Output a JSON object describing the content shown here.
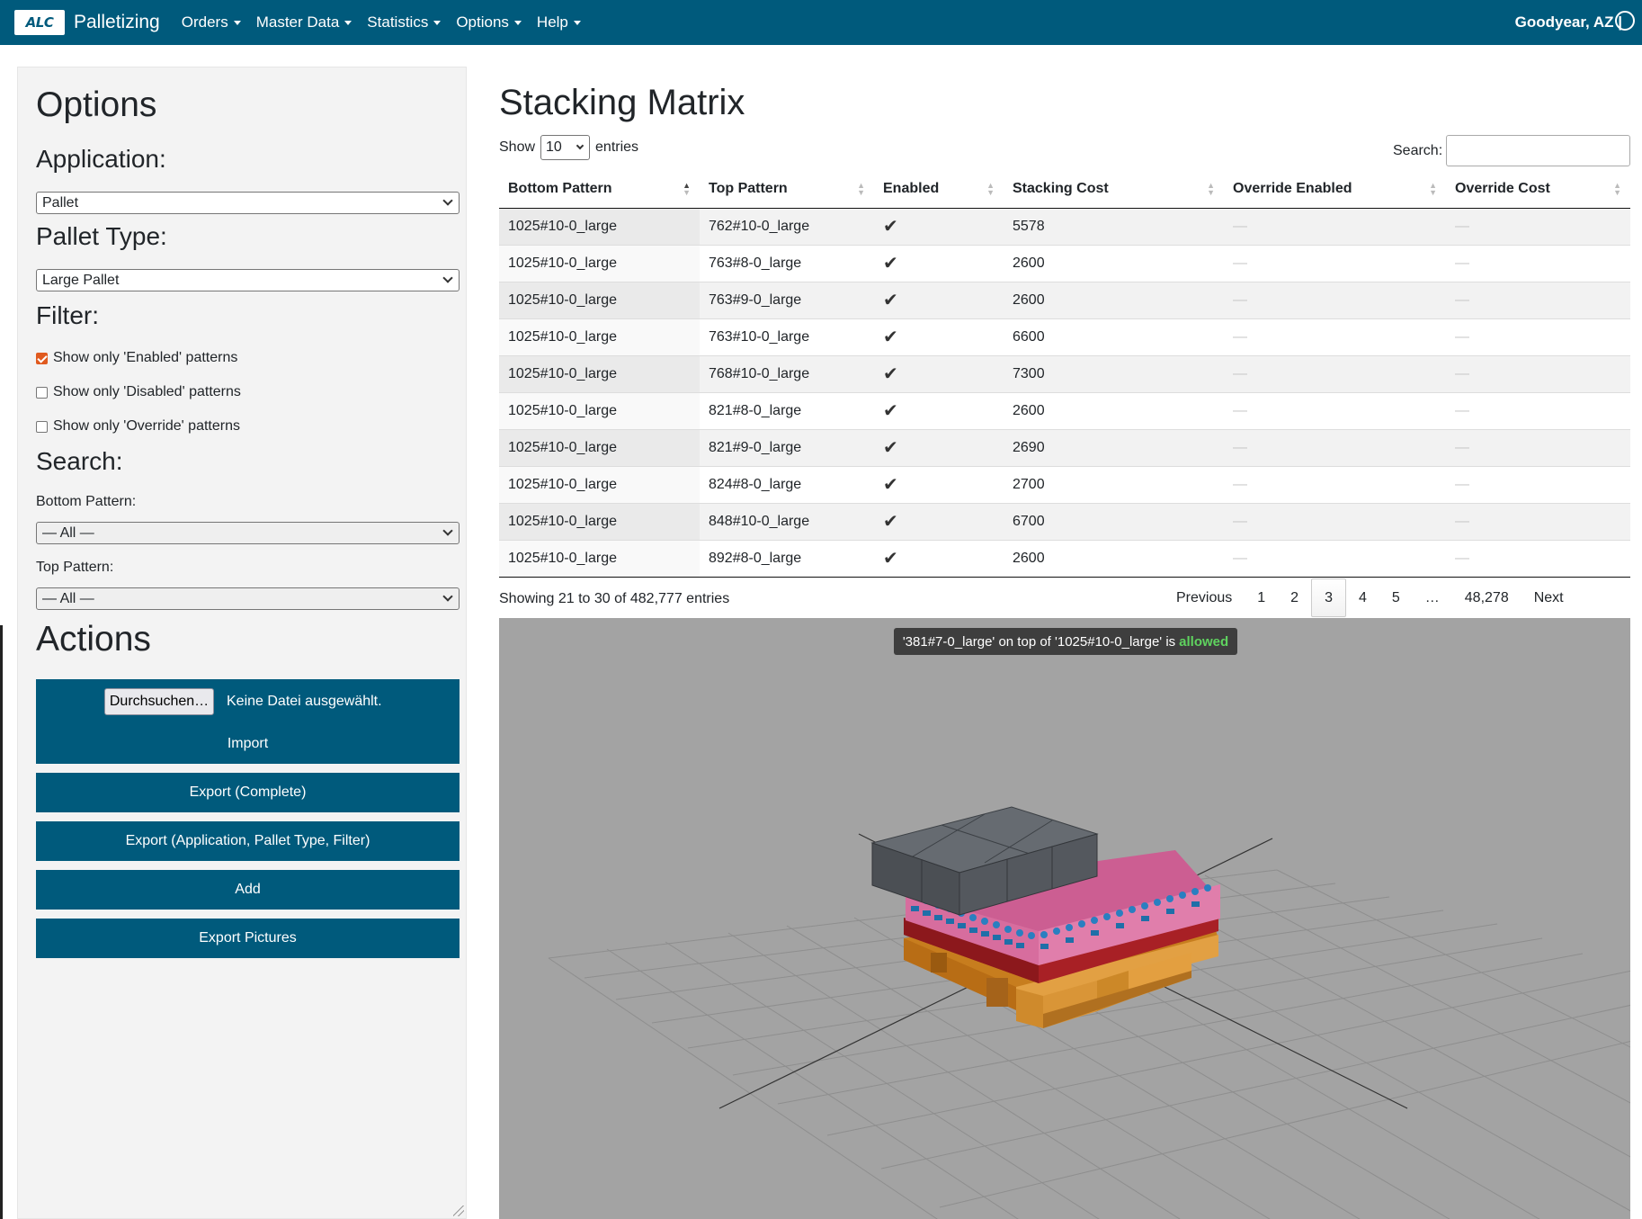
{
  "navbar": {
    "logo_text": "ALC",
    "app_name": "Palletizing",
    "menu": [
      {
        "label": "Orders"
      },
      {
        "label": "Master Data"
      },
      {
        "label": "Statistics"
      },
      {
        "label": "Options"
      },
      {
        "label": "Help"
      }
    ],
    "location": "Goodyear, AZ |"
  },
  "options": {
    "title": "Options",
    "application_label": "Application:",
    "application_value": "Pallet",
    "pallet_type_label": "Pallet Type:",
    "pallet_type_value": "Large Pallet",
    "filter_label": "Filter:",
    "filters": [
      {
        "label": "Show only 'Enabled' patterns",
        "checked": true
      },
      {
        "label": "Show only 'Disabled' patterns",
        "checked": false
      },
      {
        "label": "Show only 'Override' patterns",
        "checked": false
      }
    ],
    "search_label": "Search:",
    "bottom_pattern_label": "Bottom Pattern:",
    "bottom_pattern_value": "— All —",
    "top_pattern_label": "Top Pattern:",
    "top_pattern_value": "— All —"
  },
  "actions": {
    "title": "Actions",
    "browse_button": "Durchsuchen…",
    "no_file_text": "Keine Datei ausgewählt.",
    "import_label": "Import",
    "export_complete": "Export (Complete)",
    "export_filtered": "Export (Application, Pallet Type, Filter)",
    "add": "Add",
    "export_pictures": "Export Pictures"
  },
  "matrix": {
    "title": "Stacking Matrix",
    "show_label": "Show",
    "entries_label": "entries",
    "page_length": "10",
    "search_label": "Search:",
    "columns": [
      "Bottom Pattern",
      "Top Pattern",
      "Enabled",
      "Stacking Cost",
      "Override Enabled",
      "Override Cost"
    ],
    "rows": [
      {
        "bottom": "1025#10-0_large",
        "top": "762#10-0_large",
        "enabled": "✔",
        "cost": "5578",
        "override_enabled": "—",
        "override_cost": "—"
      },
      {
        "bottom": "1025#10-0_large",
        "top": "763#8-0_large",
        "enabled": "✔",
        "cost": "2600",
        "override_enabled": "—",
        "override_cost": "—"
      },
      {
        "bottom": "1025#10-0_large",
        "top": "763#9-0_large",
        "enabled": "✔",
        "cost": "2600",
        "override_enabled": "—",
        "override_cost": "—"
      },
      {
        "bottom": "1025#10-0_large",
        "top": "763#10-0_large",
        "enabled": "✔",
        "cost": "6600",
        "override_enabled": "—",
        "override_cost": "—"
      },
      {
        "bottom": "1025#10-0_large",
        "top": "768#10-0_large",
        "enabled": "✔",
        "cost": "7300",
        "override_enabled": "—",
        "override_cost": "—"
      },
      {
        "bottom": "1025#10-0_large",
        "top": "821#8-0_large",
        "enabled": "✔",
        "cost": "2600",
        "override_enabled": "—",
        "override_cost": "—"
      },
      {
        "bottom": "1025#10-0_large",
        "top": "821#9-0_large",
        "enabled": "✔",
        "cost": "2690",
        "override_enabled": "—",
        "override_cost": "—"
      },
      {
        "bottom": "1025#10-0_large",
        "top": "824#8-0_large",
        "enabled": "✔",
        "cost": "2700",
        "override_enabled": "—",
        "override_cost": "—"
      },
      {
        "bottom": "1025#10-0_large",
        "top": "848#10-0_large",
        "enabled": "✔",
        "cost": "6700",
        "override_enabled": "—",
        "override_cost": "—"
      },
      {
        "bottom": "1025#10-0_large",
        "top": "892#8-0_large",
        "enabled": "✔",
        "cost": "2600",
        "override_enabled": "—",
        "override_cost": "—"
      }
    ],
    "info": "Showing 21 to 30 of 482,777 entries",
    "pagination": {
      "previous": "Previous",
      "pages": [
        "1",
        "2",
        "3",
        "4",
        "5",
        "…",
        "48,278"
      ],
      "active": "3",
      "next": "Next"
    }
  },
  "viewer": {
    "tooltip_text": "'381#7-0_large' on top of '1025#10-0_large' is",
    "tooltip_status": "allowed",
    "colors": {
      "background": "#a3a3a3",
      "pallet_wood": "#d8902a",
      "slip_sheet": "#b3262b",
      "bottles": "#d66f9a",
      "bottle_caps": "#1f7fb5",
      "boxes": "#4e5257"
    }
  }
}
